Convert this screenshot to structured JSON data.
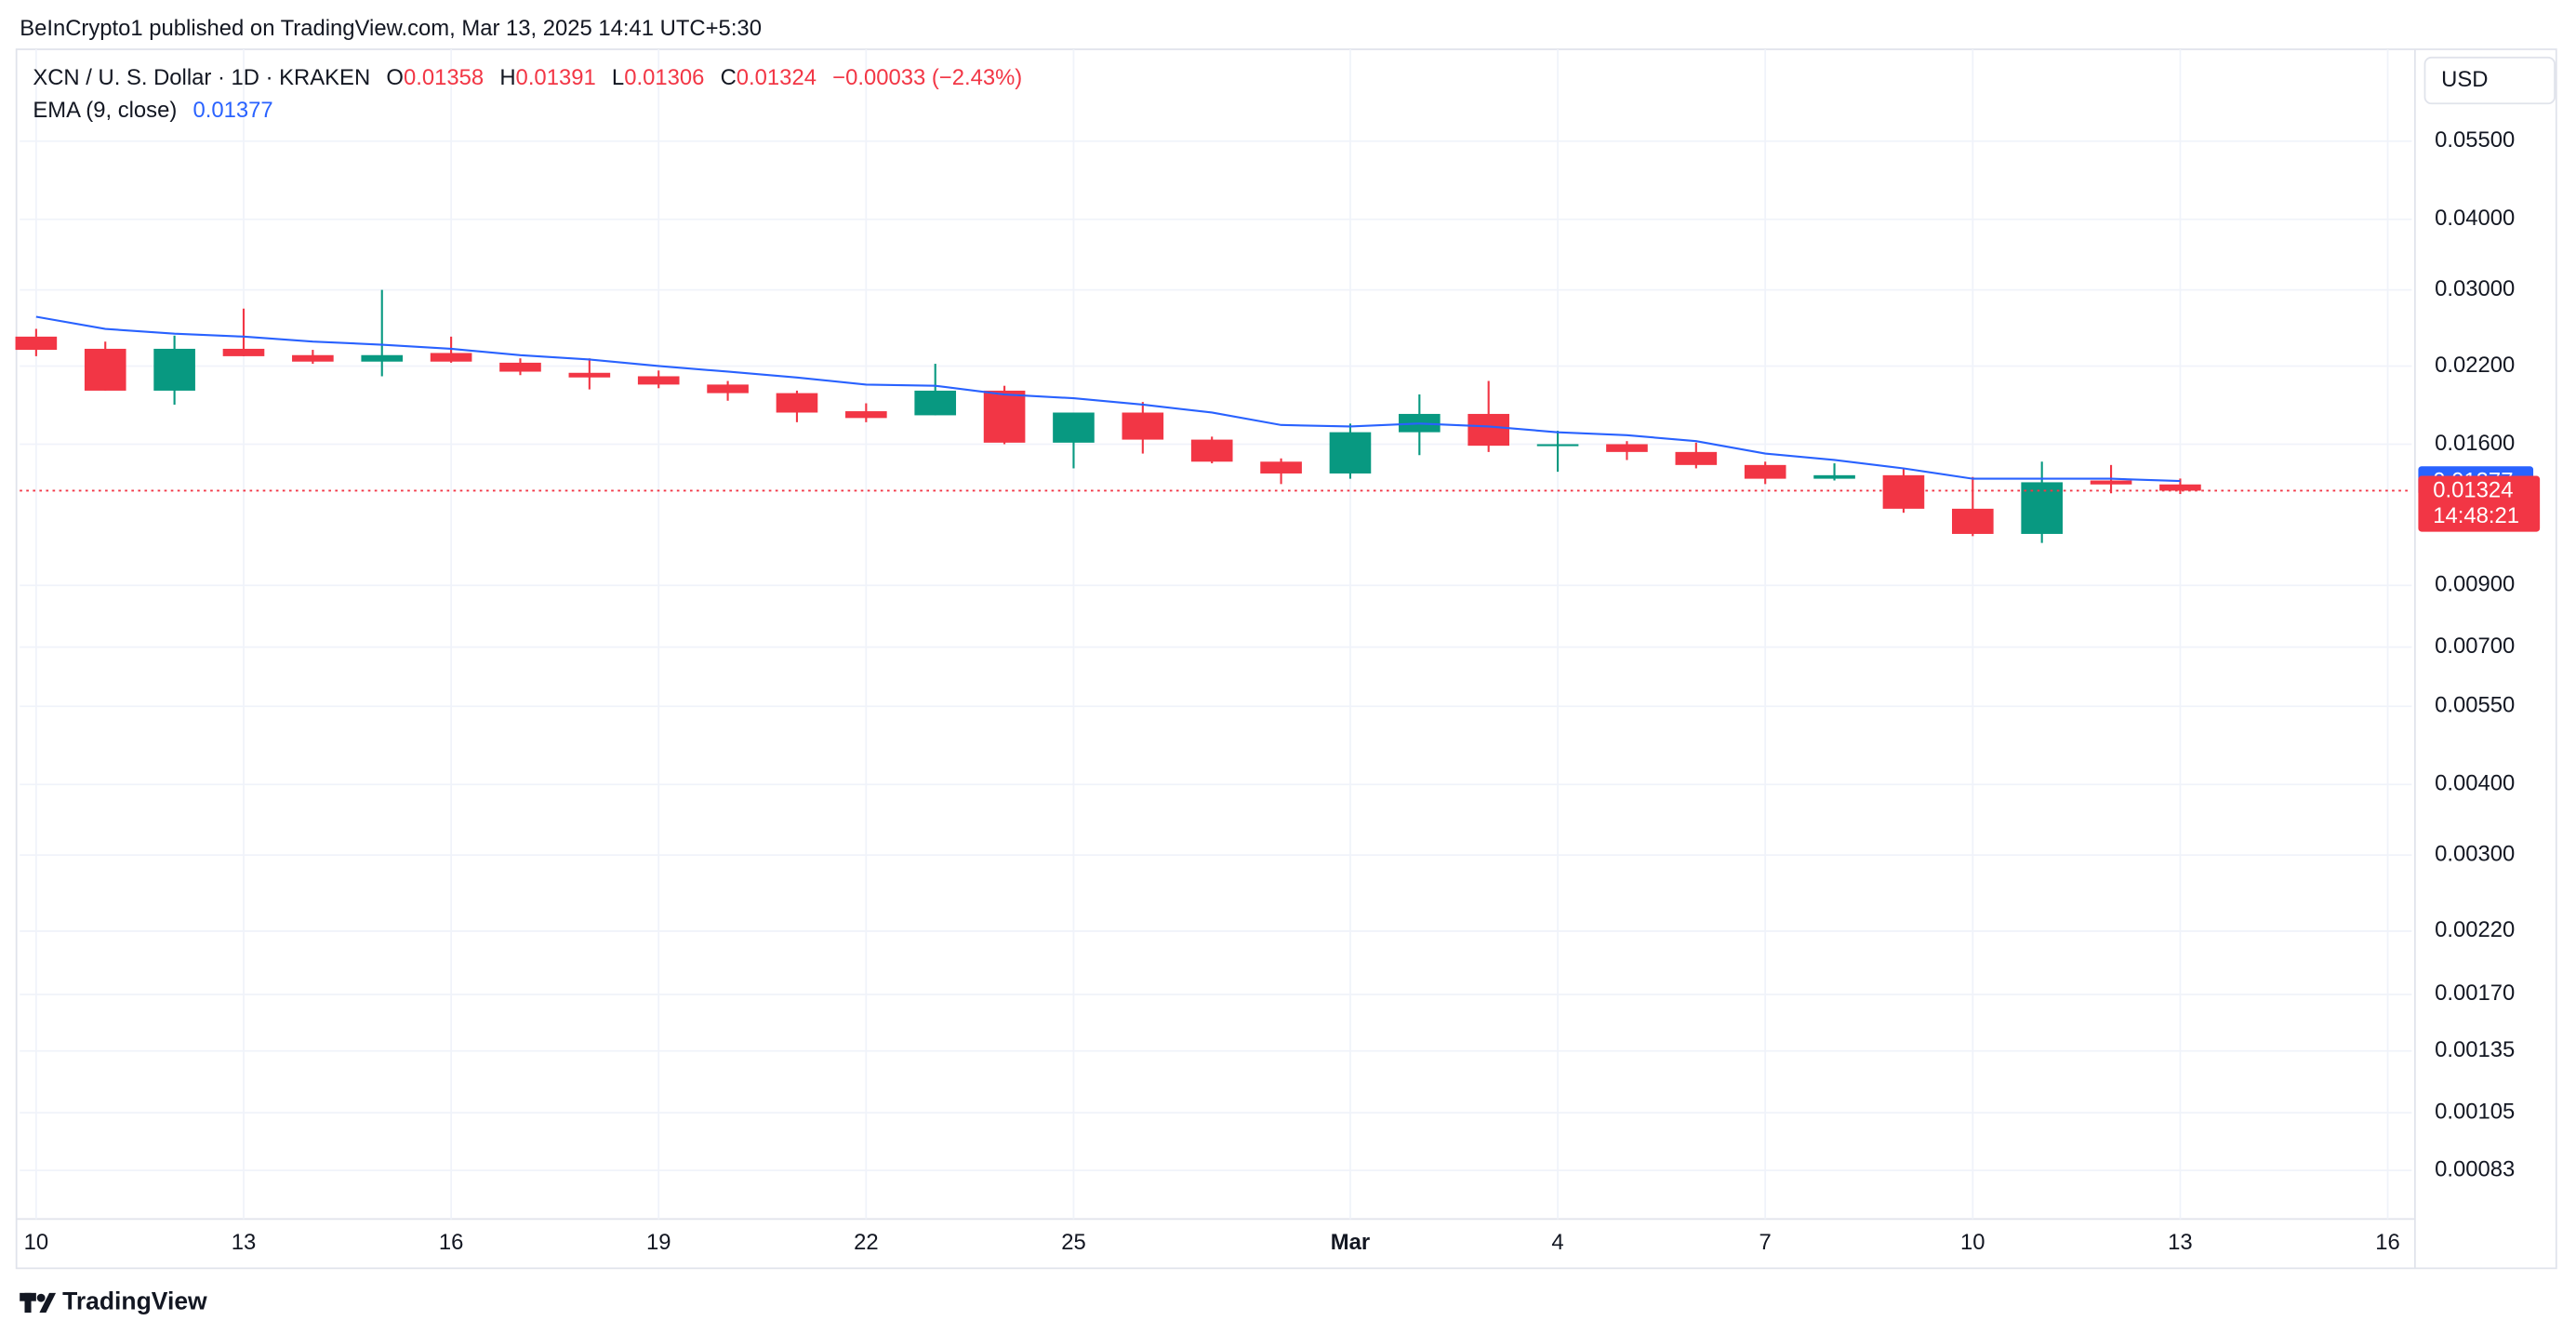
{
  "header": "BeInCrypto1 published on TradingView.com, Mar 13, 2025 14:41 UTC+5:30",
  "footer": "TradingView",
  "chart_data": {
    "type": "candlestick",
    "title": "XCN / U. S. Dollar · 1D · KRAKEN",
    "ohlc_labels": [
      "O",
      "H",
      "L",
      "C"
    ],
    "change_label": "−0.00033 (−2.43%)",
    "currency": "USD",
    "countdown": "14:48:21",
    "log_scale": true,
    "grid": true,
    "up_color": "#089981",
    "down_color": "#f23645",
    "categories": [
      "10",
      null,
      null,
      "13",
      null,
      null,
      "16",
      null,
      null,
      "19",
      null,
      null,
      "22",
      null,
      null,
      "25",
      null,
      null,
      null,
      "Mar",
      null,
      null,
      "4",
      null,
      null,
      "7",
      null,
      null,
      "10",
      null,
      null,
      "13",
      null,
      null,
      "16"
    ],
    "open": [
      0.0248,
      0.0236,
      0.0199,
      0.0236,
      0.023,
      0.0224,
      0.0232,
      0.0223,
      0.0214,
      0.0211,
      0.0204,
      0.0197,
      0.0183,
      0.018,
      0.0199,
      0.0161,
      0.0182,
      0.0163,
      0.0149,
      0.0142,
      0.0168,
      0.0181,
      0.0159,
      0.016,
      0.0155,
      0.0147,
      0.0139,
      0.0141,
      0.0123,
      0.0111,
      0.0138,
      0.01358,
      null,
      null,
      null
    ],
    "high": [
      0.0256,
      0.0243,
      0.0249,
      0.0278,
      0.0235,
      0.03,
      0.0248,
      0.0227,
      0.0227,
      0.0216,
      0.0207,
      0.0199,
      0.0189,
      0.0222,
      0.0203,
      0.0182,
      0.019,
      0.0165,
      0.0151,
      0.0174,
      0.0196,
      0.0207,
      0.0169,
      0.0162,
      0.0161,
      0.0149,
      0.0148,
      0.0145,
      0.014,
      0.0149,
      0.0147,
      0.01391,
      null,
      null,
      null
    ],
    "low": [
      0.0229,
      0.0199,
      0.0188,
      0.0229,
      0.0222,
      0.0211,
      0.0223,
      0.0212,
      0.02,
      0.0201,
      0.0191,
      0.0175,
      0.0175,
      0.018,
      0.016,
      0.0145,
      0.0154,
      0.0148,
      0.0136,
      0.0139,
      0.0153,
      0.0155,
      0.0143,
      0.015,
      0.0145,
      0.0136,
      0.0138,
      0.0121,
      0.011,
      0.0107,
      0.0131,
      0.01306,
      null,
      null,
      null
    ],
    "close": [
      0.0235,
      0.0199,
      0.0236,
      0.0229,
      0.0224,
      0.023,
      0.0224,
      0.0215,
      0.021,
      0.0204,
      0.0197,
      0.0182,
      0.0178,
      0.0199,
      0.0161,
      0.0182,
      0.0163,
      0.0149,
      0.0142,
      0.0168,
      0.0181,
      0.0159,
      0.016,
      0.0155,
      0.0147,
      0.0139,
      0.0141,
      0.0123,
      0.0111,
      0.0137,
      0.01358,
      0.01324,
      null,
      null,
      null
    ],
    "ema": {
      "name": "EMA (9, close)",
      "color": "#2962ff",
      "values": [
        0.0269,
        0.0256,
        0.0251,
        0.0248,
        0.0243,
        0.024,
        0.0236,
        0.023,
        0.0226,
        0.022,
        0.0215,
        0.021,
        0.0204,
        0.0203,
        0.0196,
        0.0193,
        0.0188,
        0.0182,
        0.0173,
        0.0172,
        0.0174,
        0.0172,
        0.0168,
        0.0166,
        0.0162,
        0.0154,
        0.015,
        0.0145,
        0.0139,
        0.0139,
        0.0139,
        0.01377,
        null,
        null,
        null
      ]
    },
    "ylim": [
      0.00069,
      0.0758
    ],
    "yticks": [
      {
        "value": 0.055,
        "label": "0.05500"
      },
      {
        "value": 0.04,
        "label": "0.04000"
      },
      {
        "value": 0.03,
        "label": "0.03000"
      },
      {
        "value": 0.022,
        "label": "0.02200"
      },
      {
        "value": 0.016,
        "label": "0.01600"
      },
      {
        "value": 0.009,
        "label": "0.00900"
      },
      {
        "value": 0.007,
        "label": "0.00700"
      },
      {
        "value": 0.0055,
        "label": "0.00550"
      },
      {
        "value": 0.004,
        "label": "0.00400"
      },
      {
        "value": 0.003,
        "label": "0.00300"
      },
      {
        "value": 0.0022,
        "label": "0.00220"
      },
      {
        "value": 0.0017,
        "label": "0.00170"
      },
      {
        "value": 0.00135,
        "label": "0.00135"
      },
      {
        "value": 0.00105,
        "label": "0.00105"
      },
      {
        "value": 0.00083,
        "label": "0.00083"
      }
    ]
  }
}
